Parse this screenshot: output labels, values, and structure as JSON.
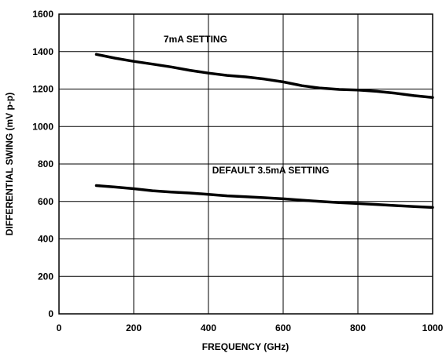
{
  "chart_data": {
    "type": "line",
    "xlabel": "FREQUENCY (GHz)",
    "ylabel": "DIFFERENTIAL SWING (mV p-p)",
    "xlim": [
      0,
      1000
    ],
    "ylim": [
      0,
      1600
    ],
    "xticks": [
      "0",
      "200",
      "400",
      "600",
      "800",
      "1000"
    ],
    "yticks": [
      "0",
      "200",
      "400",
      "600",
      "800",
      "1000",
      "1200",
      "1400",
      "1600"
    ],
    "grid": true,
    "series": [
      {
        "name": "7mA SETTING",
        "x": [
          100,
          150,
          200,
          250,
          300,
          350,
          400,
          450,
          500,
          550,
          600,
          650,
          700,
          750,
          800,
          850,
          900,
          950,
          1000
        ],
        "y": [
          1385,
          1365,
          1348,
          1333,
          1318,
          1300,
          1285,
          1273,
          1265,
          1253,
          1238,
          1218,
          1205,
          1198,
          1195,
          1188,
          1178,
          1165,
          1155
        ]
      },
      {
        "name": "DEFAULT 3.5mA SETTING",
        "x": [
          100,
          150,
          200,
          250,
          300,
          350,
          400,
          450,
          500,
          550,
          600,
          650,
          700,
          750,
          800,
          850,
          900,
          950,
          1000
        ],
        "y": [
          685,
          677,
          668,
          657,
          650,
          645,
          638,
          630,
          625,
          620,
          614,
          607,
          600,
          594,
          589,
          584,
          578,
          573,
          568
        ]
      }
    ],
    "colors": {
      "line": "#000000",
      "grid": "#000000",
      "background": "#ffffff"
    }
  }
}
